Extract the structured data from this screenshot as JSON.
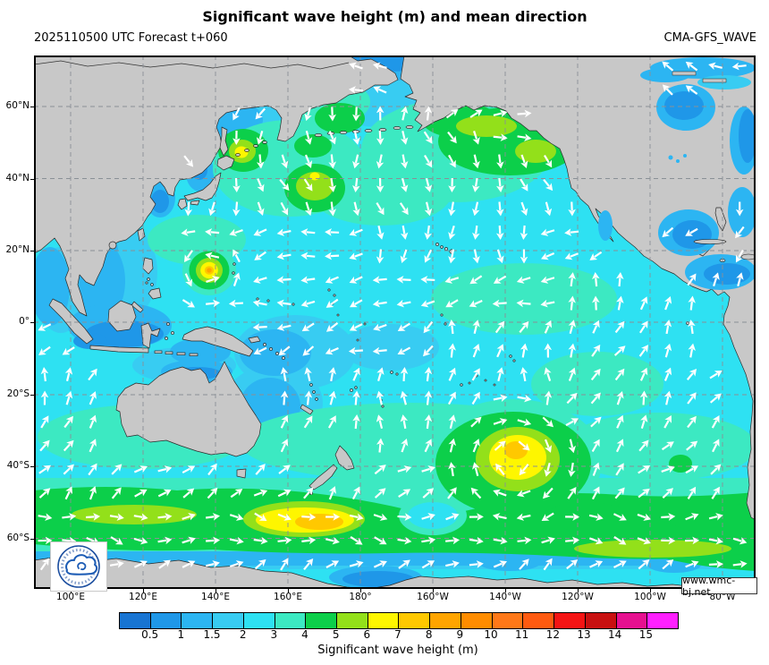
{
  "header": {
    "title": "Significant wave height (m) and mean direction",
    "forecast": "2025110500 UTC Forecast t+060",
    "model": "CMA-GFS_WAVE"
  },
  "map": {
    "lat_labels": [
      "60°N",
      "40°N",
      "20°N",
      "0°",
      "20°S",
      "40°S",
      "60°S"
    ],
    "lon_labels": [
      "100°E",
      "120°E",
      "140°E",
      "160°E",
      "180°",
      "160°W",
      "140°W",
      "120°W",
      "100°W",
      "80°W"
    ],
    "watermark": "www.wmc-bj.net"
  },
  "colorbar": {
    "caption": "Significant wave height (m)",
    "ticks": [
      "0.5",
      "1",
      "1.5",
      "2",
      "3",
      "4",
      "5",
      "6",
      "7",
      "8",
      "9",
      "10",
      "11",
      "12",
      "13",
      "14",
      "15"
    ],
    "colors": [
      "#1874d2",
      "#1f97e8",
      "#2cb5f2",
      "#38ccf2",
      "#2ee1f2",
      "#3ce9c2",
      "#0ccf4a",
      "#93e01a",
      "#fef600",
      "#ffc800",
      "#ffa400",
      "#ff8c00",
      "#ff7818",
      "#ff5a10",
      "#f51414",
      "#c81010",
      "#e61090",
      "#ff20ff"
    ]
  },
  "palette": {
    "ocean_base": "#2ee1f2",
    "land": "#c8c8c8",
    "arrow": "#ffffff",
    "grid": "#8a9096"
  },
  "logo": {
    "name": "china-meteorological-administration-emblem"
  }
}
